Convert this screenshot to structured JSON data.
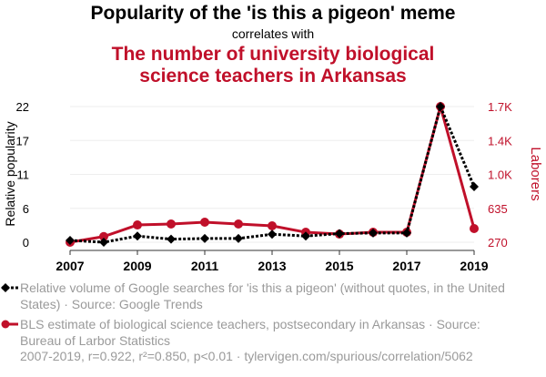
{
  "chart_data": {
    "type": "line",
    "title": "Popularity of the 'is this a pigeon' meme",
    "subtitle": "correlates with",
    "title2": "The number of university biological science teachers in Arkansas",
    "x": [
      2007,
      2008,
      2009,
      2010,
      2011,
      2012,
      2013,
      2014,
      2015,
      2016,
      2017,
      2018,
      2019
    ],
    "x_ticks": [
      "2007",
      "2009",
      "2011",
      "2013",
      "2015",
      "2017",
      "2019"
    ],
    "ylabel_left": "Relative popularity",
    "ylabel_right": "Laborers",
    "yticks_left": [
      "0",
      "6",
      "11",
      "17",
      "22"
    ],
    "yticks_right": [
      "270",
      "635",
      "1.0K",
      "1.4K",
      "1.7K"
    ],
    "ylim_left": [
      0,
      22
    ],
    "ylim_right": [
      270,
      1700
    ],
    "series": [
      {
        "name": "Relative volume of Google searches for 'is this a pigeon' (without quotes, in the United States) · Source: Google Trends",
        "axis": "left",
        "color": "#000000",
        "values": [
          0.3,
          0,
          1,
          0.5,
          0.6,
          0.6,
          1.3,
          1,
          1.4,
          1.5,
          1.5,
          22,
          9
        ]
      },
      {
        "name": "BLS estimate of biological science teachers, postsecondary in Arkansas · Source: Bureau of Larbor Statistics",
        "axis": "right",
        "color": "#c0102a",
        "values": [
          270,
          330,
          452,
          462,
          481,
          462,
          443,
          375,
          356,
          375,
          375,
          1700,
          414
        ]
      }
    ],
    "grid": true,
    "footer": "2007-2019, r=0.922, r²=0.850, p<0.01 · tylervigen.com/spurious/correlation/5062"
  }
}
